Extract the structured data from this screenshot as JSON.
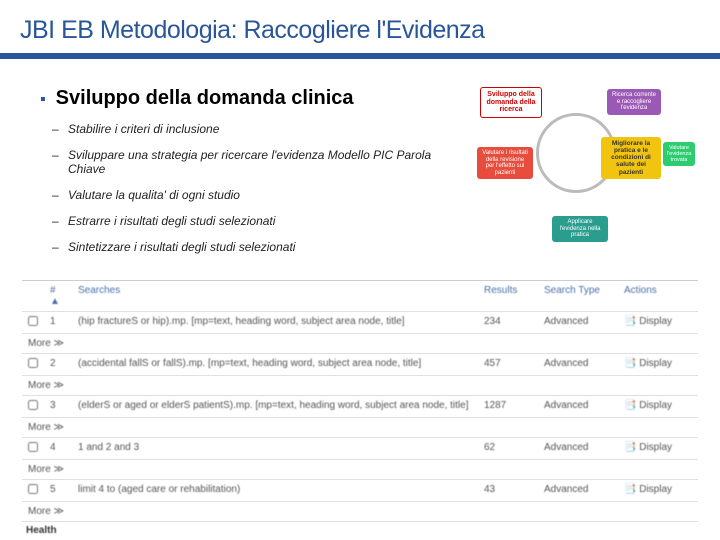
{
  "title": "JBI EB Metodologia: Raccogliere l'Evidenza",
  "heading": "Sviluppo della domanda clinica",
  "bullets": [
    "Stabilire i criteri di inclusione",
    "Sviluppare una strategia per ricercare l'evidenza Modello PIC Parola Chiave",
    "Valutare la qualita' di ogni studio",
    "Estrarre i risultati degli studi selezionati",
    "Sintetizzare i risultati degli studi selezionati"
  ],
  "diagram": {
    "top_left": "Sviluppo della domanda della ricerca",
    "top_right": "Ricerca corrente e raccogliere l'evidenza",
    "mid_left": "Valutare i risultati della revisione per l'effetto sui pazienti",
    "mid_right": "Migliorare la pratica e le condizioni di salute dei pazienti",
    "far_right": "Valutare l'evidenza trovata",
    "bottom": "Applicare l'evidenza nella pratica"
  },
  "table": {
    "headers": {
      "idx": "# ▲",
      "searches": "Searches",
      "results": "Results",
      "stype": "Search Type",
      "actions": "Actions"
    },
    "rows": [
      {
        "n": "1",
        "q": "(hip fractureS or hip).mp. [mp=text, heading word, subject area node, title]",
        "r": "234",
        "t": "Advanced"
      },
      {
        "n": "2",
        "q": "(accidental fallS or fallS).mp. [mp=text, heading word, subject area node, title]",
        "r": "457",
        "t": "Advanced"
      },
      {
        "n": "3",
        "q": "(elderS or aged or elderS patientS).mp. [mp=text, heading word, subject area node, title]",
        "r": "1287",
        "t": "Advanced"
      },
      {
        "n": "4",
        "q": "1 and 2 and 3",
        "r": "62",
        "t": "Advanced"
      },
      {
        "n": "5",
        "q": "limit 4 to (aged care or rehabilitation)",
        "r": "43",
        "t": "Advanced"
      }
    ],
    "display": "Display",
    "more": "More ≫",
    "health": "Health"
  }
}
